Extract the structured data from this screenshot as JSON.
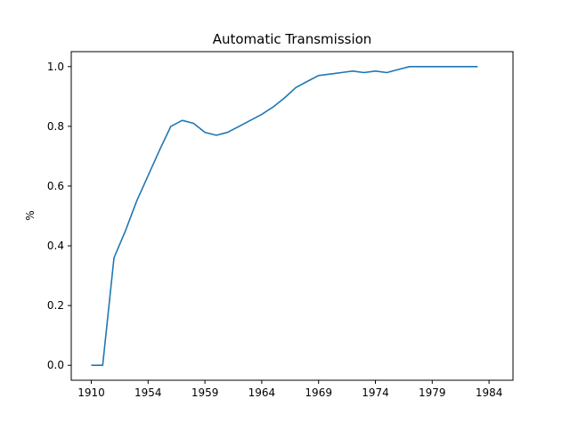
{
  "chart_data": {
    "type": "line",
    "title": "Automatic Transmission",
    "xlabel": "",
    "ylabel": "%",
    "grid": false,
    "legend": "none",
    "line_color": "#1f77b4",
    "x_tick_labels": [
      "1910",
      "1954",
      "1959",
      "1964",
      "1969",
      "1974",
      "1979",
      "1984"
    ],
    "y_ticks": [
      0.0,
      0.2,
      0.4,
      0.6,
      0.8,
      1.0
    ],
    "y_tick_labels": [
      "0.0",
      "0.2",
      "0.4",
      "0.6",
      "0.8",
      "1.0"
    ],
    "ylim": [
      -0.05,
      1.05
    ],
    "x": [
      "1910",
      "1911",
      "1912",
      "1913",
      "1954",
      "1955",
      "1956",
      "1957",
      "1958",
      "1959",
      "1960",
      "1961",
      "1962",
      "1963",
      "1964",
      "1965",
      "1966",
      "1967",
      "1968",
      "1969",
      "1970",
      "1971",
      "1972",
      "1973",
      "1974",
      "1975",
      "1976",
      "1977",
      "1978",
      "1979",
      "1980",
      "1981",
      "1982",
      "1983",
      "1984"
    ],
    "series": [
      {
        "values": [
          0.0,
          0.0,
          0.36,
          0.45,
          0.55,
          0.635,
          0.72,
          0.8,
          0.82,
          0.81,
          0.78,
          0.77,
          0.78,
          0.8,
          0.82,
          0.84,
          0.865,
          0.895,
          0.93,
          0.95,
          0.97,
          0.975,
          0.98,
          0.985,
          0.98,
          0.985,
          0.98,
          0.99,
          1.0,
          1.0,
          1.0,
          1.0,
          1.0,
          1.0,
          1.0
        ]
      }
    ]
  }
}
